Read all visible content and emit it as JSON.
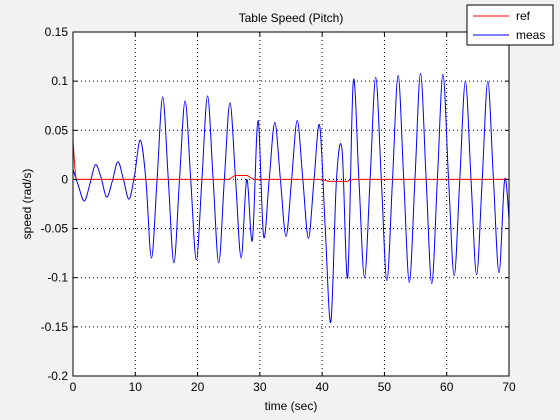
{
  "chart_data": {
    "type": "line",
    "title": "Table Speed (Pitch)",
    "xlabel": "time (sec)",
    "ylabel": "speed (rad/s)",
    "xlim": [
      0,
      70
    ],
    "ylim": [
      -0.2,
      0.15
    ],
    "xticks": [
      0,
      10,
      20,
      30,
      40,
      50,
      60,
      70
    ],
    "yticks": [
      -0.2,
      -0.15,
      -0.1,
      -0.05,
      0,
      0.05,
      0.1,
      0.15
    ],
    "xtick_labels": [
      "0",
      "10",
      "20",
      "30",
      "40",
      "50",
      "60",
      "70"
    ],
    "ytick_labels": [
      "-0.2",
      "-0.15",
      "-0.1",
      "-0.05",
      "0",
      "0.05",
      "0.1",
      "0.15"
    ],
    "grid": true,
    "legend_position": "top-right",
    "series": [
      {
        "name": "ref",
        "color": "#ff0000",
        "x": [
          0,
          0.2,
          0.4,
          0.5,
          11.5,
          12.5,
          25,
          26,
          27,
          28,
          29,
          40,
          41,
          44,
          45,
          70
        ],
        "y": [
          0.04,
          0.02,
          0.005,
          0,
          0,
          0,
          0,
          0.004,
          0.004,
          0.004,
          0,
          0,
          -0.002,
          -0.002,
          0,
          0
        ]
      },
      {
        "name": "meas",
        "color": "#0000ff",
        "x": [
          0,
          0.8,
          1.8,
          2.7,
          3.6,
          4.5,
          5.4,
          6.3,
          7.2,
          8.1,
          9.0,
          9.9,
          10.8,
          11.7,
          12.6,
          13.5,
          14.4,
          15.3,
          16.2,
          17.1,
          18.0,
          18.9,
          19.8,
          20.7,
          21.6,
          22.5,
          23.4,
          24.3,
          25.2,
          26.1,
          27.0,
          27.9,
          28.8,
          29.7,
          30.6,
          31.5,
          32.4,
          33.3,
          34.2,
          35.1,
          36.0,
          36.9,
          37.8,
          38.7,
          39.6,
          40.5,
          41.4,
          42.3,
          43.2,
          44.1,
          45.0,
          45.9,
          46.8,
          47.7,
          48.6,
          49.5,
          50.4,
          51.3,
          52.2,
          53.1,
          54.0,
          54.9,
          55.8,
          56.7,
          57.6,
          58.5,
          59.4,
          60.3,
          61.2,
          62.1,
          63.0,
          63.9,
          64.8,
          65.7,
          66.6,
          67.5,
          68.4,
          69.3,
          70
        ],
        "y": [
          0.01,
          -0.005,
          -0.022,
          -0.005,
          0.015,
          0.002,
          -0.018,
          -0.002,
          0.018,
          0.0,
          -0.02,
          0.005,
          0.04,
          0.0,
          -0.08,
          0.0,
          0.084,
          0.0,
          -0.085,
          0.0,
          0.08,
          0.0,
          -0.082,
          0.0,
          0.085,
          0.0,
          -0.085,
          0.0,
          0.078,
          0.0,
          -0.08,
          0.0,
          -0.062,
          0.06,
          -0.058,
          0.0,
          0.058,
          0.0,
          -0.058,
          0.0,
          0.06,
          0.0,
          -0.06,
          0.0,
          0.055,
          -0.05,
          -0.145,
          0.0,
          0.03,
          -0.1,
          0.1,
          0.0,
          -0.1,
          0.0,
          0.104,
          0.0,
          -0.103,
          0.0,
          0.106,
          0.0,
          -0.105,
          0.0,
          0.108,
          0.0,
          -0.106,
          0.0,
          0.107,
          0.0,
          -0.098,
          0.0,
          0.1,
          0.0,
          -0.097,
          0.0,
          0.1,
          0.0,
          -0.095,
          0.0,
          -0.04
        ]
      }
    ]
  }
}
